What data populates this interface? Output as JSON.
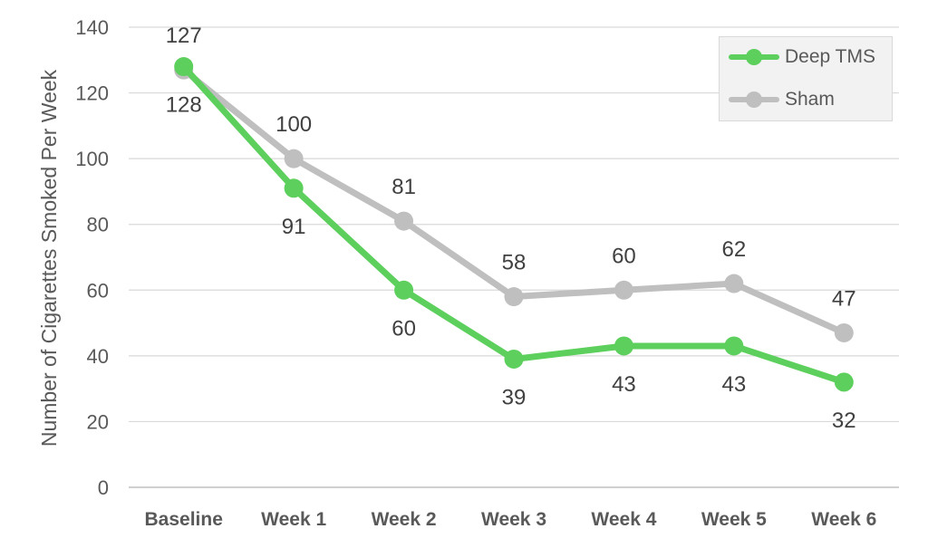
{
  "chart_data": {
    "type": "line",
    "categories": [
      "Baseline",
      "Week 1",
      "Week 2",
      "Week 3",
      "Week 4",
      "Week 5",
      "Week 6"
    ],
    "series": [
      {
        "name": "Deep TMS",
        "values": [
          128,
          91,
          60,
          39,
          43,
          43,
          32
        ],
        "color": "#5ccf5c"
      },
      {
        "name": "Sham",
        "values": [
          127,
          100,
          81,
          58,
          60,
          62,
          47
        ],
        "color": "#bfbfbf"
      }
    ],
    "title": "",
    "xlabel": "",
    "ylabel": "Number of Cigarettes Smoked Per Week",
    "ylim": [
      0,
      140
    ],
    "yticks": [
      0,
      20,
      40,
      60,
      80,
      100,
      120,
      140
    ],
    "grid": true,
    "legend": "top-right"
  }
}
